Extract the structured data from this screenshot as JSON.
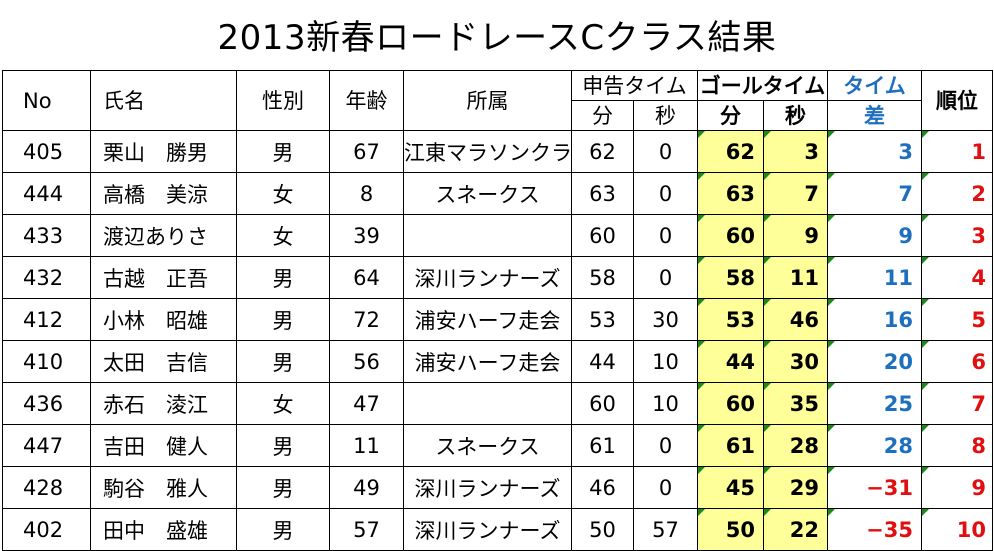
{
  "title": "2013新春ロードレースCクラス結果",
  "headers": {
    "no": "No",
    "name": "氏名",
    "gender": "性別",
    "age": "年齢",
    "affiliation": "所属",
    "declared_time": "申告タイム",
    "goal_time": "ゴールタイム",
    "diff_line1": "タイム",
    "diff_line2": "差",
    "rank": "順位",
    "min": "分",
    "sec": "秒"
  },
  "rows": [
    {
      "no": "405",
      "name": "栗山　勝男",
      "gender": "男",
      "age": "67",
      "affiliation": "江東マラソンクラブ",
      "dmin": "62",
      "dsec": "0",
      "gmin": "62",
      "gsec": "3",
      "diff": "3",
      "rank": "1"
    },
    {
      "no": "444",
      "name": "高橋　美涼",
      "gender": "女",
      "age": "8",
      "affiliation": "スネークス",
      "dmin": "63",
      "dsec": "0",
      "gmin": "63",
      "gsec": "7",
      "diff": "7",
      "rank": "2"
    },
    {
      "no": "433",
      "name": "渡辺ありさ",
      "gender": "女",
      "age": "39",
      "affiliation": "",
      "dmin": "60",
      "dsec": "0",
      "gmin": "60",
      "gsec": "9",
      "diff": "9",
      "rank": "3"
    },
    {
      "no": "432",
      "name": "古越　正吾",
      "gender": "男",
      "age": "64",
      "affiliation": "深川ランナーズ",
      "dmin": "58",
      "dsec": "0",
      "gmin": "58",
      "gsec": "11",
      "diff": "11",
      "rank": "4"
    },
    {
      "no": "412",
      "name": "小林　昭雄",
      "gender": "男",
      "age": "72",
      "affiliation": "浦安ハーフ走会",
      "dmin": "53",
      "dsec": "30",
      "gmin": "53",
      "gsec": "46",
      "diff": "16",
      "rank": "5"
    },
    {
      "no": "410",
      "name": "太田　吉信",
      "gender": "男",
      "age": "56",
      "affiliation": "浦安ハーフ走会",
      "dmin": "44",
      "dsec": "10",
      "gmin": "44",
      "gsec": "30",
      "diff": "20",
      "rank": "6"
    },
    {
      "no": "436",
      "name": "赤石　淩江",
      "gender": "女",
      "age": "47",
      "affiliation": "",
      "dmin": "60",
      "dsec": "10",
      "gmin": "60",
      "gsec": "35",
      "diff": "25",
      "rank": "7"
    },
    {
      "no": "447",
      "name": "吉田　健人",
      "gender": "男",
      "age": "11",
      "affiliation": "スネークス",
      "dmin": "61",
      "dsec": "0",
      "gmin": "61",
      "gsec": "28",
      "diff": "28",
      "rank": "8"
    },
    {
      "no": "428",
      "name": "駒谷　雅人",
      "gender": "男",
      "age": "49",
      "affiliation": "深川ランナーズ",
      "dmin": "46",
      "dsec": "0",
      "gmin": "45",
      "gsec": "29",
      "diff": "−31",
      "rank": "9"
    },
    {
      "no": "402",
      "name": "田中　盛雄",
      "gender": "男",
      "age": "57",
      "affiliation": "深川ランナーズ",
      "dmin": "50",
      "dsec": "57",
      "gmin": "50",
      "gsec": "22",
      "diff": "−35",
      "rank": "10"
    }
  ],
  "colors": {
    "highlight": "#ffff99",
    "diff_positive": "#1f6fbf",
    "diff_negative": "#e01010",
    "rank": "#e01010",
    "comment_marker": "#1a8a1a"
  }
}
